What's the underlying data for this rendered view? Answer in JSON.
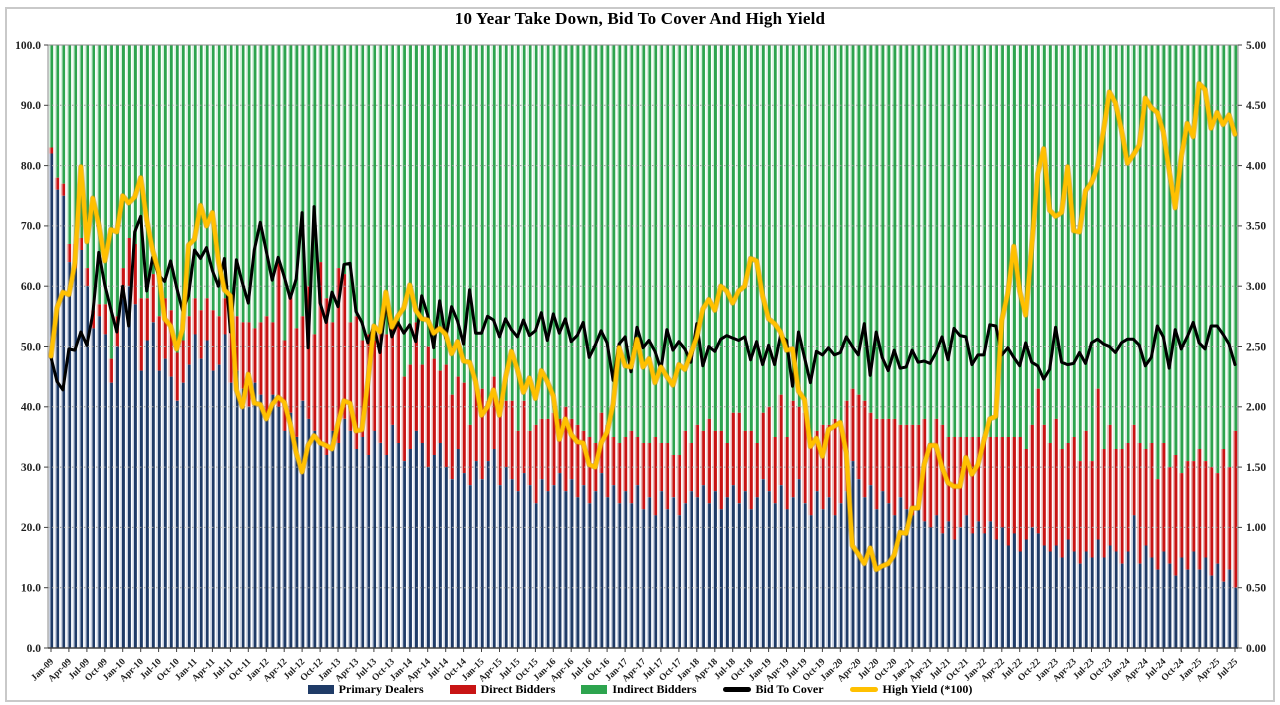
{
  "chart_data": {
    "type": "bar",
    "subtype": "stacked-100-with-lines",
    "title": "10 Year Take Down, Bid To Cover And High Yield",
    "grid": true,
    "legend_position": "bottom",
    "axis_left": {
      "range": [
        0,
        100
      ],
      "tick_labels": [
        "100.0",
        "90.0",
        "80.0",
        "70.0",
        "60.0",
        "50.0",
        "40.0",
        "30.0",
        "20.0",
        "10.0",
        "0.0"
      ]
    },
    "axis_right": {
      "range": [
        0,
        5
      ],
      "tick_labels": [
        "5.00",
        "4.50",
        "4.00",
        "3.50",
        "3.00",
        "2.50",
        "2.00",
        "1.50",
        "1.00",
        "0.50",
        "0.00"
      ]
    },
    "x_ticks_every": 3,
    "x_tick_labels": [
      "Jan-09",
      "Apr-09",
      "Jul-09",
      "Oct-09",
      "Jan-10",
      "Apr-10",
      "Jul-10",
      "Oct-10",
      "Jan-11",
      "Apr-11",
      "Jul-11",
      "Oct-11",
      "Jan-12",
      "Apr-12",
      "Jul-12",
      "Oct-12",
      "Jan-13",
      "Apr-13",
      "Jul-13",
      "Oct-13",
      "Jan-14",
      "Apr-14",
      "Jul-14",
      "Oct-14",
      "Jan-15",
      "Apr-15",
      "Jul-15",
      "Oct-15",
      "Jan-16",
      "Apr-16",
      "Jul-16",
      "Oct-16",
      "Jan-17",
      "Apr-17",
      "Jul-17",
      "Oct-17",
      "Jan-18",
      "Apr-18",
      "Jul-18",
      "Oct-18",
      "Jan-19",
      "Apr-19",
      "Jul-19",
      "Oct-19",
      "Jan-20",
      "Apr-20",
      "Jul-20",
      "Oct-20",
      "Jan-21",
      "Apr-21",
      "Jul-21",
      "Oct-21",
      "Jan-22",
      "Apr-22",
      "Jul-22",
      "Oct-22",
      "Jan-23",
      "Apr-23",
      "Jul-23",
      "Oct-23",
      "Jan-24",
      "Apr-24",
      "Jul-24",
      "Oct-24",
      "Jan-25",
      "Apr-25",
      "Jul-25"
    ],
    "colors": {
      "primary_dealers": "#1F3B67",
      "primary_dealers_tint": "#C7CFDF",
      "direct_bidders": "#C81414",
      "direct_bidders_tint": "#EBB3B3",
      "indirect_bidders": "#2DA44E",
      "indirect_bidders_tint": "#D2EDDA",
      "bid_to_cover": "#000000",
      "high_yield": "#FFC000"
    },
    "series": [
      {
        "name": "Primary Dealers",
        "type": "bar-stack",
        "axis": "left",
        "values": [
          82,
          76,
          75,
          64,
          63,
          66,
          60,
          53,
          55,
          52,
          44,
          50,
          58,
          60,
          57,
          46,
          51,
          54,
          46,
          48,
          45,
          41,
          44,
          47,
          52,
          48,
          51,
          46,
          47,
          52,
          44,
          46,
          43,
          40,
          44,
          42,
          38,
          42,
          40,
          36,
          39,
          35,
          41,
          38,
          36,
          34,
          32,
          36,
          34,
          38,
          36,
          33,
          35,
          32,
          36,
          34,
          32,
          37,
          34,
          31,
          33,
          36,
          34,
          30,
          32,
          34,
          30,
          28,
          33,
          29,
          27,
          31,
          28,
          31,
          33,
          27,
          30,
          28,
          26,
          29,
          27,
          24,
          28,
          26,
          27,
          29,
          26,
          28,
          25,
          27,
          24,
          26,
          29,
          25,
          27,
          24,
          26,
          24,
          27,
          23,
          25,
          22,
          26,
          23,
          25,
          22,
          24,
          26,
          25,
          27,
          24,
          26,
          23,
          25,
          27,
          24,
          26,
          23,
          25,
          28,
          26,
          24,
          27,
          23,
          25,
          28,
          24,
          22,
          26,
          23,
          25,
          22,
          24,
          26,
          31,
          28,
          25,
          27,
          23,
          26,
          24,
          22,
          25,
          23,
          22,
          24,
          21,
          20,
          22,
          19,
          21,
          18,
          20,
          22,
          19,
          21,
          19,
          21,
          18,
          20,
          17,
          19,
          16,
          18,
          20,
          19,
          17,
          16,
          17,
          15,
          18,
          16,
          14,
          16,
          15,
          18,
          15,
          17,
          16,
          14,
          16,
          22,
          14,
          17,
          15,
          13,
          16,
          14,
          12,
          15,
          13,
          16,
          13,
          15,
          12,
          14,
          11,
          13,
          10
        ]
      },
      {
        "name": "Direct Bidders",
        "type": "bar-stack",
        "axis": "left",
        "values": [
          1,
          2,
          2,
          3,
          4,
          2,
          3,
          3,
          2,
          5,
          4,
          5,
          5,
          8,
          10,
          12,
          7,
          8,
          9,
          10,
          11,
          8,
          7,
          8,
          6,
          8,
          7,
          10,
          8,
          6,
          12,
          9,
          11,
          14,
          9,
          12,
          17,
          12,
          24,
          15,
          20,
          18,
          14,
          22,
          16,
          30,
          26,
          18,
          29,
          24,
          18,
          22,
          16,
          20,
          15,
          18,
          20,
          16,
          20,
          14,
          14,
          18,
          13,
          20,
          16,
          12,
          17,
          14,
          12,
          15,
          10,
          13,
          15,
          10,
          12,
          14,
          11,
          13,
          10,
          12,
          9,
          13,
          10,
          12,
          12,
          9,
          14,
          10,
          12,
          9,
          11,
          8,
          10,
          12,
          8,
          10,
          9,
          12,
          8,
          11,
          9,
          13,
          8,
          11,
          7,
          10,
          12,
          8,
          12,
          9,
          14,
          10,
          13,
          9,
          12,
          15,
          10,
          13,
          9,
          11,
          14,
          11,
          15,
          12,
          16,
          12,
          15,
          13,
          10,
          14,
          12,
          16,
          13,
          15,
          12,
          14,
          16,
          12,
          15,
          12,
          14,
          16,
          12,
          14,
          15,
          13,
          17,
          14,
          16,
          18,
          14,
          17,
          15,
          13,
          16,
          14,
          16,
          14,
          17,
          15,
          18,
          16,
          19,
          15,
          17,
          24,
          20,
          18,
          21,
          18,
          16,
          19,
          17,
          20,
          16,
          25,
          18,
          20,
          17,
          19,
          18,
          15,
          20,
          16,
          19,
          15,
          18,
          16,
          20,
          14,
          18,
          15,
          20,
          16,
          18,
          15,
          22,
          17,
          26
        ]
      },
      {
        "name": "Indirect Bidders",
        "type": "bar-stack",
        "axis": "left",
        "values": [
          17,
          22,
          23,
          33,
          33,
          32,
          37,
          44,
          43,
          43,
          52,
          45,
          37,
          32,
          33,
          42,
          42,
          38,
          45,
          42,
          44,
          51,
          49,
          45,
          42,
          44,
          42,
          44,
          45,
          42,
          44,
          45,
          46,
          46,
          47,
          46,
          45,
          46,
          36,
          49,
          41,
          47,
          45,
          40,
          48,
          36,
          42,
          46,
          37,
          38,
          46,
          45,
          49,
          48,
          49,
          48,
          48,
          47,
          46,
          55,
          53,
          46,
          53,
          50,
          52,
          54,
          53,
          58,
          55,
          56,
          63,
          56,
          57,
          59,
          55,
          59,
          59,
          59,
          64,
          59,
          64,
          63,
          62,
          62,
          61,
          62,
          60,
          62,
          63,
          64,
          65,
          66,
          61,
          63,
          65,
          66,
          65,
          64,
          65,
          66,
          66,
          65,
          66,
          66,
          68,
          68,
          64,
          66,
          63,
          64,
          62,
          64,
          64,
          66,
          61,
          61,
          64,
          64,
          66,
          61,
          60,
          65,
          58,
          65,
          59,
          60,
          61,
          65,
          64,
          63,
          63,
          62,
          63,
          59,
          57,
          58,
          59,
          61,
          62,
          62,
          62,
          62,
          63,
          63,
          63,
          63,
          62,
          66,
          62,
          63,
          65,
          65,
          65,
          65,
          65,
          65,
          65,
          65,
          65,
          65,
          65,
          65,
          65,
          67,
          63,
          57,
          63,
          66,
          62,
          67,
          66,
          65,
          69,
          64,
          69,
          57,
          67,
          63,
          67,
          67,
          66,
          63,
          66,
          67,
          66,
          72,
          66,
          70,
          68,
          71,
          69,
          69,
          67,
          69,
          70,
          71,
          67,
          70,
          64
        ]
      },
      {
        "name": "Bid To Cover",
        "type": "line",
        "axis": "right",
        "values": [
          2.41,
          2.21,
          2.14,
          2.48,
          2.47,
          2.62,
          2.51,
          2.77,
          3.28,
          3.01,
          2.81,
          2.62,
          3.0,
          2.67,
          3.45,
          3.58,
          2.96,
          3.24,
          3.09,
          3.04,
          3.21,
          2.99,
          2.8,
          2.92,
          3.3,
          3.23,
          3.32,
          3.13,
          3.0,
          3.23,
          2.62,
          3.22,
          3.03,
          2.86,
          3.3,
          3.53,
          3.29,
          3.05,
          3.24,
          3.08,
          2.9,
          3.06,
          3.61,
          2.49,
          3.66,
          2.86,
          2.7,
          2.95,
          2.83,
          3.18,
          3.19,
          2.79,
          2.7,
          2.53,
          2.67,
          2.45,
          2.86,
          2.58,
          2.7,
          2.61,
          2.68,
          2.54,
          2.92,
          2.76,
          2.49,
          2.88,
          2.57,
          2.83,
          2.71,
          2.52,
          2.97,
          2.61,
          2.61,
          2.75,
          2.72,
          2.58,
          2.73,
          2.64,
          2.58,
          2.72,
          2.59,
          2.63,
          2.78,
          2.55,
          2.77,
          2.61,
          2.73,
          2.54,
          2.59,
          2.7,
          2.41,
          2.51,
          2.63,
          2.53,
          2.22,
          2.52,
          2.58,
          2.29,
          2.66,
          2.49,
          2.55,
          2.46,
          2.31,
          2.64,
          2.47,
          2.54,
          2.48,
          2.37,
          2.69,
          2.34,
          2.5,
          2.46,
          2.56,
          2.59,
          2.57,
          2.55,
          2.58,
          2.39,
          2.54,
          2.35,
          2.51,
          2.35,
          2.59,
          2.55,
          2.17,
          2.62,
          2.41,
          2.2,
          2.46,
          2.43,
          2.49,
          2.43,
          2.45,
          2.58,
          2.5,
          2.43,
          2.69,
          2.26,
          2.62,
          2.41,
          2.3,
          2.47,
          2.32,
          2.33,
          2.47,
          2.37,
          2.38,
          2.36,
          2.45,
          2.58,
          2.39,
          2.65,
          2.59,
          2.58,
          2.35,
          2.43,
          2.43,
          2.68,
          2.67,
          2.43,
          2.49,
          2.41,
          2.34,
          2.53,
          2.37,
          2.34,
          2.23,
          2.31,
          2.66,
          2.37,
          2.35,
          2.36,
          2.45,
          2.36,
          2.53,
          2.56,
          2.52,
          2.5,
          2.45,
          2.53,
          2.56,
          2.56,
          2.51,
          2.34,
          2.41,
          2.67,
          2.58,
          2.32,
          2.64,
          2.48,
          2.58,
          2.7,
          2.53,
          2.48,
          2.67,
          2.67,
          2.6,
          2.52,
          2.35
        ]
      },
      {
        "name": "High Yield (*100)",
        "type": "line",
        "axis": "right",
        "values": [
          2.42,
          2.82,
          2.95,
          2.93,
          3.19,
          3.99,
          3.37,
          3.73,
          3.51,
          3.21,
          3.47,
          3.45,
          3.75,
          3.69,
          3.74,
          3.9,
          3.55,
          3.3,
          3.12,
          2.73,
          2.67,
          2.48,
          2.64,
          3.34,
          3.39,
          3.67,
          3.5,
          3.61,
          3.21,
          2.97,
          2.92,
          2.14,
          2.0,
          2.27,
          2.03,
          2.02,
          1.9,
          2.02,
          2.08,
          2.04,
          1.86,
          1.62,
          1.46,
          1.68,
          1.76,
          1.7,
          1.68,
          1.65,
          1.86,
          2.05,
          2.03,
          1.8,
          1.81,
          2.21,
          2.67,
          2.62,
          2.95,
          2.66,
          2.75,
          2.82,
          3.01,
          2.8,
          2.73,
          2.72,
          2.61,
          2.65,
          2.6,
          2.44,
          2.54,
          2.38,
          2.37,
          2.21,
          1.93,
          2.0,
          2.14,
          1.93,
          2.24,
          2.46,
          2.31,
          2.12,
          2.24,
          2.07,
          2.3,
          2.21,
          2.09,
          1.73,
          1.9,
          1.77,
          1.71,
          1.7,
          1.52,
          1.5,
          1.7,
          1.79,
          2.02,
          2.49,
          2.34,
          2.33,
          2.56,
          2.33,
          2.4,
          2.2,
          2.33,
          2.25,
          2.18,
          2.35,
          2.31,
          2.44,
          2.58,
          2.81,
          2.89,
          2.8,
          3.0,
          2.96,
          2.86,
          2.96,
          3.0,
          3.23,
          3.21,
          2.92,
          2.73,
          2.69,
          2.62,
          2.47,
          2.48,
          2.13,
          2.06,
          1.67,
          1.74,
          1.59,
          1.81,
          1.84,
          1.87,
          1.62,
          0.85,
          0.78,
          0.7,
          0.83,
          0.65,
          0.68,
          0.7,
          0.77,
          0.96,
          0.95,
          1.16,
          1.16,
          1.52,
          1.68,
          1.68,
          1.5,
          1.37,
          1.34,
          1.34,
          1.58,
          1.44,
          1.52,
          1.72,
          1.9,
          1.92,
          2.72,
          2.94,
          3.33,
          2.96,
          2.76,
          3.33,
          3.93,
          4.14,
          3.63,
          3.58,
          3.61,
          3.99,
          3.46,
          3.45,
          3.79,
          3.86,
          3.99,
          4.29,
          4.61,
          4.52,
          4.3,
          4.02,
          4.09,
          4.17,
          4.56,
          4.48,
          4.44,
          4.28,
          3.96,
          3.65,
          4.07,
          4.35,
          4.24,
          4.68,
          4.63,
          4.31,
          4.44,
          4.34,
          4.42,
          4.26
        ]
      }
    ],
    "legend": [
      "Primary Dealers",
      "Direct Bidders",
      "Indirect Bidders",
      "Bid To Cover",
      "High Yield (*100)"
    ]
  }
}
